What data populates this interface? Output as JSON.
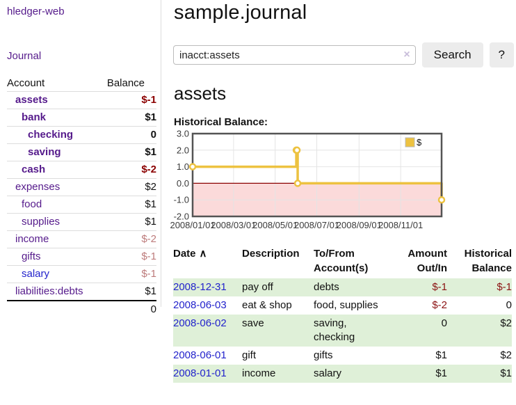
{
  "colors": {
    "accent_purple": "#551a8b",
    "link_blue": "#2323cc",
    "negative_strong": "#8b0000",
    "negative_soft": "#bd7b7b",
    "row_green": "#dff0d8",
    "chart_gold": "#edc240",
    "chart_pink_region": "#fbdada",
    "zero_line_red": "#8b0000",
    "plot_border_gray": "#545454"
  },
  "sidebar": {
    "brand": "hledger-web",
    "journal_link": "Journal",
    "account_header": "Account",
    "balance_header": "Balance",
    "rows": [
      {
        "account": "assets",
        "balance": "$-1",
        "indent": 1,
        "bold": true,
        "balance_color": "neg-strong",
        "link_color": "purple"
      },
      {
        "account": "bank",
        "balance": "$1",
        "indent": 2,
        "bold": true,
        "balance_color": "",
        "link_color": "purple"
      },
      {
        "account": "checking",
        "balance": "0",
        "indent": 3,
        "bold": true,
        "balance_color": "",
        "link_color": "purple"
      },
      {
        "account": "saving",
        "balance": "$1",
        "indent": 3,
        "bold": true,
        "balance_color": "",
        "link_color": "purple"
      },
      {
        "account": "cash",
        "balance": "$-2",
        "indent": 2,
        "bold": true,
        "balance_color": "neg-strong",
        "link_color": "purple"
      },
      {
        "account": "expenses",
        "balance": "$2",
        "indent": 1,
        "bold": false,
        "balance_color": "",
        "link_color": "purple"
      },
      {
        "account": "food",
        "balance": "$1",
        "indent": 2,
        "bold": false,
        "balance_color": "",
        "link_color": "purple"
      },
      {
        "account": "supplies",
        "balance": "$1",
        "indent": 2,
        "bold": false,
        "balance_color": "",
        "link_color": "purple"
      },
      {
        "account": "income",
        "balance": "$-2",
        "indent": 1,
        "bold": false,
        "balance_color": "neg-soft",
        "link_color": "purple"
      },
      {
        "account": "gifts",
        "balance": "$-1",
        "indent": 2,
        "bold": false,
        "balance_color": "neg-soft",
        "link_color": "purple"
      },
      {
        "account": "salary",
        "balance": "$-1",
        "indent": 2,
        "bold": false,
        "balance_color": "neg-soft",
        "link_color": "blue"
      },
      {
        "account": "liabilities:debts",
        "balance": "$1",
        "indent": 1,
        "bold": false,
        "balance_color": "",
        "link_color": "purple"
      }
    ],
    "total": "0"
  },
  "main": {
    "title": "sample.journal",
    "search": {
      "value": "inacct:assets",
      "clear_icon": "×",
      "button_label": "Search",
      "help_label": "?"
    },
    "heading": "assets",
    "chart_title": "Historical Balance:",
    "register": {
      "headers": {
        "date": "Date",
        "sort_arrow": "∧",
        "description": "Description",
        "account": "To/From Account(s)",
        "amount": "Amount Out/In",
        "balance": "Historical Balance"
      },
      "rows": [
        {
          "date": "2008-12-31",
          "description": "pay off",
          "account": "debts",
          "amount": "$-1",
          "balance": "$-1"
        },
        {
          "date": "2008-06-03",
          "description": "eat & shop",
          "account": "food, supplies",
          "amount": "$-2",
          "balance": "0"
        },
        {
          "date": "2008-06-02",
          "description": "save",
          "account": "saving,\nchecking",
          "amount": "0",
          "balance": "$2"
        },
        {
          "date": "2008-06-01",
          "description": "gift",
          "account": "gifts",
          "amount": "$1",
          "balance": "$2"
        },
        {
          "date": "2008-01-01",
          "description": "income",
          "account": "salary",
          "amount": "$1",
          "balance": "$1"
        }
      ]
    }
  },
  "chart_data": {
    "type": "line",
    "title": "Historical Balance:",
    "step": true,
    "legend_position": "top-right",
    "series": [
      {
        "name": "$",
        "color": "#edc240",
        "points": [
          [
            "2008-01-01",
            1
          ],
          [
            "2008-06-01",
            2
          ],
          [
            "2008-06-02",
            2
          ],
          [
            "2008-06-03",
            0
          ],
          [
            "2008-12-31",
            -1
          ]
        ]
      }
    ],
    "xrange": [
      "2008-01-01",
      "2008-12-31"
    ],
    "ylim": [
      -2,
      3
    ],
    "yticks": [
      3,
      2,
      1,
      0,
      -1,
      -2
    ],
    "ytick_labels": [
      "3.0",
      "2.0",
      "1.0",
      "0.0",
      "-1.0",
      "-2.0"
    ],
    "xtick_labels": [
      "2008/01/01",
      "2008/03/01",
      "2008/05/01",
      "2008/07/01",
      "2008/09/01",
      "2008/11/01"
    ],
    "grid": true,
    "negative_region": {
      "from": 0,
      "to": -2,
      "fill": "#fbdada"
    },
    "zero_line_color": "#8b0000"
  }
}
